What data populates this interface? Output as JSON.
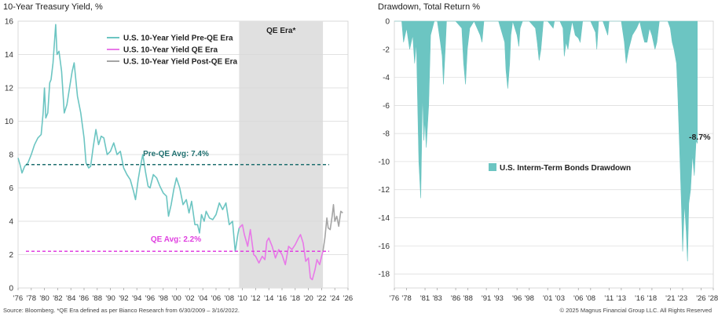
{
  "footnotes": {
    "source": "Source: Bloomberg. *QE Era defined as per Bianco Research from 6/30/2009 – 3/16/2022.",
    "copyright": "© 2025 Magnus Financial Group LLC. All Rights Reserved"
  },
  "colors": {
    "pre_qe": "#6cc5c2",
    "qe": "#e879e8",
    "post_qe": "#a5a5a5",
    "pre_qe_avg_line": "#1f6f6f",
    "qe_avg_line": "#e040e0",
    "qe_shade": "#e0e0e0",
    "drawdown": "#6cc5c2",
    "grid": "#d9d9d9"
  },
  "chart_data": [
    {
      "type": "line",
      "title": "10-Year Treasury Yield, %",
      "xlim": [
        1976,
        2026
      ],
      "ylim": [
        0,
        16
      ],
      "x_ticks": [
        1976,
        1978,
        1980,
        1982,
        1984,
        1986,
        1988,
        1990,
        1992,
        1994,
        1996,
        1998,
        2000,
        2002,
        2004,
        2006,
        2008,
        2010,
        2012,
        2014,
        2016,
        2018,
        2020,
        2022,
        2024,
        2026
      ],
      "x_tick_labels": [
        "'76",
        "'78",
        "'80",
        "'82",
        "'84",
        "'86",
        "'88",
        "'90",
        "'92",
        "'94",
        "'96",
        "'98",
        "'00",
        "'02",
        "'04",
        "'06",
        "'08",
        "'10",
        "'12",
        "'14",
        "'16",
        "'18",
        "'20",
        "'22",
        "'24",
        "'26"
      ],
      "y_ticks": [
        0,
        2,
        4,
        6,
        8,
        10,
        12,
        14,
        16
      ],
      "grid": "horizontal",
      "legend_position": "top-left",
      "shaded_region": {
        "label": "QE Era*",
        "x": [
          2009.5,
          2022.2
        ]
      },
      "reference_lines": [
        {
          "label": "Pre-QE Avg: 7.4%",
          "y": 7.4,
          "x": [
            1976,
            2026
          ]
        },
        {
          "label": "QE Avg: 2.2%",
          "y": 2.2,
          "x": [
            1976,
            2026
          ]
        }
      ],
      "series": [
        {
          "name": "U.S. 10-Year Yield Pre-QE Era",
          "x": [
            1976.0,
            1976.3,
            1976.6,
            1977.0,
            1977.5,
            1978.0,
            1978.5,
            1979.0,
            1979.5,
            1979.8,
            1980.0,
            1980.2,
            1980.5,
            1980.8,
            1981.0,
            1981.3,
            1981.7,
            1981.9,
            1982.2,
            1982.6,
            1983.0,
            1983.4,
            1983.8,
            1984.2,
            1984.5,
            1985.0,
            1985.5,
            1986.0,
            1986.3,
            1986.7,
            1987.0,
            1987.4,
            1987.8,
            1988.2,
            1988.6,
            1989.0,
            1989.5,
            1990.0,
            1990.5,
            1991.0,
            1991.5,
            1992.0,
            1992.5,
            1993.0,
            1993.5,
            1993.8,
            1994.2,
            1994.5,
            1994.9,
            1995.3,
            1995.7,
            1996.0,
            1996.5,
            1997.0,
            1997.5,
            1998.0,
            1998.5,
            1998.8,
            1999.2,
            1999.6,
            2000.0,
            2000.5,
            2001.0,
            2001.5,
            2001.9,
            2002.3,
            2002.8,
            2003.2,
            2003.5,
            2003.8,
            2004.2,
            2004.5,
            2005.0,
            2005.5,
            2006.0,
            2006.5,
            2007.0,
            2007.5,
            2008.0,
            2008.5,
            2008.9,
            2009.0,
            2009.3,
            2009.5
          ],
          "y": [
            7.8,
            7.4,
            6.9,
            7.3,
            7.5,
            8.0,
            8.6,
            9.0,
            9.2,
            10.5,
            12.0,
            10.2,
            10.5,
            12.3,
            12.5,
            13.5,
            15.8,
            14.0,
            14.2,
            13.0,
            10.5,
            11.0,
            12.0,
            13.0,
            13.5,
            11.5,
            10.5,
            9.0,
            7.5,
            7.2,
            7.3,
            8.5,
            9.5,
            8.6,
            9.1,
            9.0,
            8.0,
            8.2,
            8.7,
            8.0,
            8.2,
            7.2,
            6.8,
            6.5,
            5.8,
            5.3,
            6.5,
            7.2,
            8.0,
            7.0,
            6.1,
            6.0,
            6.8,
            6.6,
            6.1,
            5.7,
            5.5,
            4.3,
            5.0,
            5.9,
            6.6,
            6.0,
            5.0,
            5.3,
            4.5,
            5.2,
            3.8,
            3.8,
            3.3,
            4.4,
            4.0,
            4.6,
            4.2,
            4.1,
            4.4,
            5.1,
            4.7,
            5.1,
            3.8,
            4.0,
            2.2,
            2.4,
            3.2,
            3.6
          ]
        },
        {
          "name": "U.S. 10-Year Yield QE Era",
          "x": [
            2009.5,
            2010.0,
            2010.3,
            2010.8,
            2011.2,
            2011.7,
            2012.0,
            2012.5,
            2013.0,
            2013.4,
            2013.7,
            2014.0,
            2014.5,
            2015.0,
            2015.5,
            2016.0,
            2016.5,
            2017.0,
            2017.5,
            2018.0,
            2018.5,
            2018.8,
            2019.2,
            2019.6,
            2020.0,
            2020.3,
            2020.6,
            2021.0,
            2021.3,
            2021.7,
            2022.0,
            2022.2
          ],
          "y": [
            3.6,
            3.8,
            3.2,
            2.5,
            3.5,
            2.0,
            1.9,
            1.5,
            1.9,
            1.7,
            2.8,
            3.0,
            2.5,
            1.8,
            2.3,
            2.0,
            1.4,
            2.5,
            2.3,
            2.6,
            3.0,
            3.2,
            2.7,
            1.6,
            1.8,
            0.6,
            0.5,
            1.1,
            1.7,
            1.4,
            1.9,
            2.2
          ]
        },
        {
          "name": "U.S. 10-Year Yield Post-QE Era",
          "x": [
            2022.2,
            2022.5,
            2022.8,
            2023.0,
            2023.3,
            2023.6,
            2023.8,
            2024.0,
            2024.3,
            2024.6,
            2024.9,
            2025.2
          ],
          "y": [
            2.2,
            3.0,
            4.2,
            3.6,
            3.5,
            4.3,
            5.0,
            4.0,
            4.3,
            3.7,
            4.6,
            4.5
          ]
        }
      ]
    },
    {
      "type": "area",
      "title": "Drawdown, Total Return %",
      "xlim": [
        1976,
        2028
      ],
      "ylim": [
        -19,
        0
      ],
      "x_ticks": [
        1976,
        1978,
        1981,
        1983,
        1986,
        1988,
        1991,
        1993,
        1996,
        1998,
        2001,
        2003,
        2006,
        2008,
        2011,
        2013,
        2016,
        2018,
        2021,
        2023,
        2026,
        2028
      ],
      "x_tick_labels": [
        "'76",
        "'78",
        "'81",
        "'83",
        "'86",
        "'88",
        "'91",
        "'93",
        "'96",
        "'98",
        "'01",
        "'03",
        "'06",
        "'08",
        "'11",
        "'13",
        "'16",
        "'18",
        "'21",
        "'23",
        "'26",
        "'28"
      ],
      "y_ticks": [
        0,
        -2,
        -4,
        -6,
        -8,
        -10,
        -12,
        -14,
        -16,
        -18
      ],
      "grid": "horizontal",
      "legend_position": "center-left",
      "annotations": [
        {
          "text": "-8.7%",
          "x": 2025.2,
          "y": -8.7
        }
      ],
      "series": [
        {
          "name": "U.S. Interm-Term Bonds Drawdown",
          "x": [
            1976.0,
            1977.2,
            1977.5,
            1978.0,
            1978.5,
            1979.0,
            1979.3,
            1979.6,
            1979.8,
            1980.0,
            1980.3,
            1980.6,
            1980.8,
            1981.0,
            1981.2,
            1981.6,
            1981.9,
            1982.5,
            1983.0,
            1983.5,
            1983.8,
            1984.0,
            1984.3,
            1984.5,
            1985.0,
            1986.0,
            1987.0,
            1987.3,
            1987.6,
            1987.9,
            1988.3,
            1989.0,
            1990.0,
            1990.3,
            1990.6,
            1991.0,
            1992.0,
            1993.0,
            1994.0,
            1994.2,
            1994.5,
            1994.8,
            1995.0,
            1995.3,
            1996.0,
            1996.3,
            1996.5,
            1996.9,
            1997.5,
            1998.0,
            1999.0,
            1999.3,
            1999.6,
            1999.9,
            2000.3,
            2001.0,
            2001.9,
            2002.1,
            2002.5,
            2003.0,
            2003.5,
            2003.7,
            2004.0,
            2004.3,
            2004.6,
            2005.0,
            2005.5,
            2006.0,
            2006.3,
            2006.7,
            2007.0,
            2008.0,
            2008.8,
            2009.0,
            2009.3,
            2010.0,
            2010.8,
            2011.0,
            2011.5,
            2012.5,
            2013.0,
            2013.5,
            2013.8,
            2014.2,
            2014.8,
            2015.5,
            2016.0,
            2016.5,
            2016.8,
            2017.2,
            2017.6,
            2018.0,
            2018.5,
            2018.8,
            2019.2,
            2019.5,
            2020.0,
            2020.6,
            2021.0,
            2021.3,
            2021.6,
            2022.0,
            2022.2,
            2022.5,
            2022.8,
            2023.0,
            2023.3,
            2023.6,
            2023.8,
            2024.0,
            2024.3,
            2024.6,
            2024.9,
            2025.2,
            2025.4
          ],
          "y": [
            0.0,
            0.0,
            -1.5,
            -0.5,
            -2.0,
            -1.0,
            -3.0,
            -1.5,
            -6.0,
            -10.0,
            -12.6,
            -5.0,
            -8.5,
            -7.0,
            -9.0,
            -6.0,
            -1.0,
            0.0,
            0.0,
            -1.5,
            -2.5,
            -4.5,
            -2.0,
            0.0,
            0.0,
            0.0,
            -0.5,
            -3.0,
            -4.5,
            -2.0,
            -0.5,
            0.0,
            -1.0,
            -1.5,
            0.0,
            0.0,
            0.0,
            0.0,
            -1.5,
            -3.5,
            -4.8,
            -3.0,
            -1.0,
            0.0,
            -1.0,
            -1.8,
            -0.5,
            0.0,
            0.0,
            0.0,
            -0.5,
            -1.5,
            -2.8,
            -2.0,
            0.0,
            0.0,
            -0.5,
            0.0,
            0.0,
            0.0,
            -0.5,
            -2.5,
            -1.5,
            -2.0,
            -1.0,
            0.0,
            -1.0,
            -1.2,
            -1.5,
            0.0,
            0.0,
            0.0,
            -0.8,
            -2.0,
            0.0,
            0.0,
            -1.0,
            0.0,
            0.0,
            0.0,
            0.0,
            -1.5,
            -3.0,
            -2.0,
            -1.0,
            -0.5,
            0.0,
            -1.0,
            -1.5,
            -1.5,
            -0.5,
            -1.0,
            -2.0,
            -1.5,
            0.0,
            0.0,
            0.0,
            0.0,
            -0.5,
            -1.5,
            -2.0,
            -3.0,
            -5.0,
            -9.0,
            -13.0,
            -16.4,
            -13.0,
            -15.0,
            -17.1,
            -13.0,
            -12.0,
            -9.5,
            -11.0,
            -8.5,
            -8.7
          ]
        }
      ]
    }
  ]
}
